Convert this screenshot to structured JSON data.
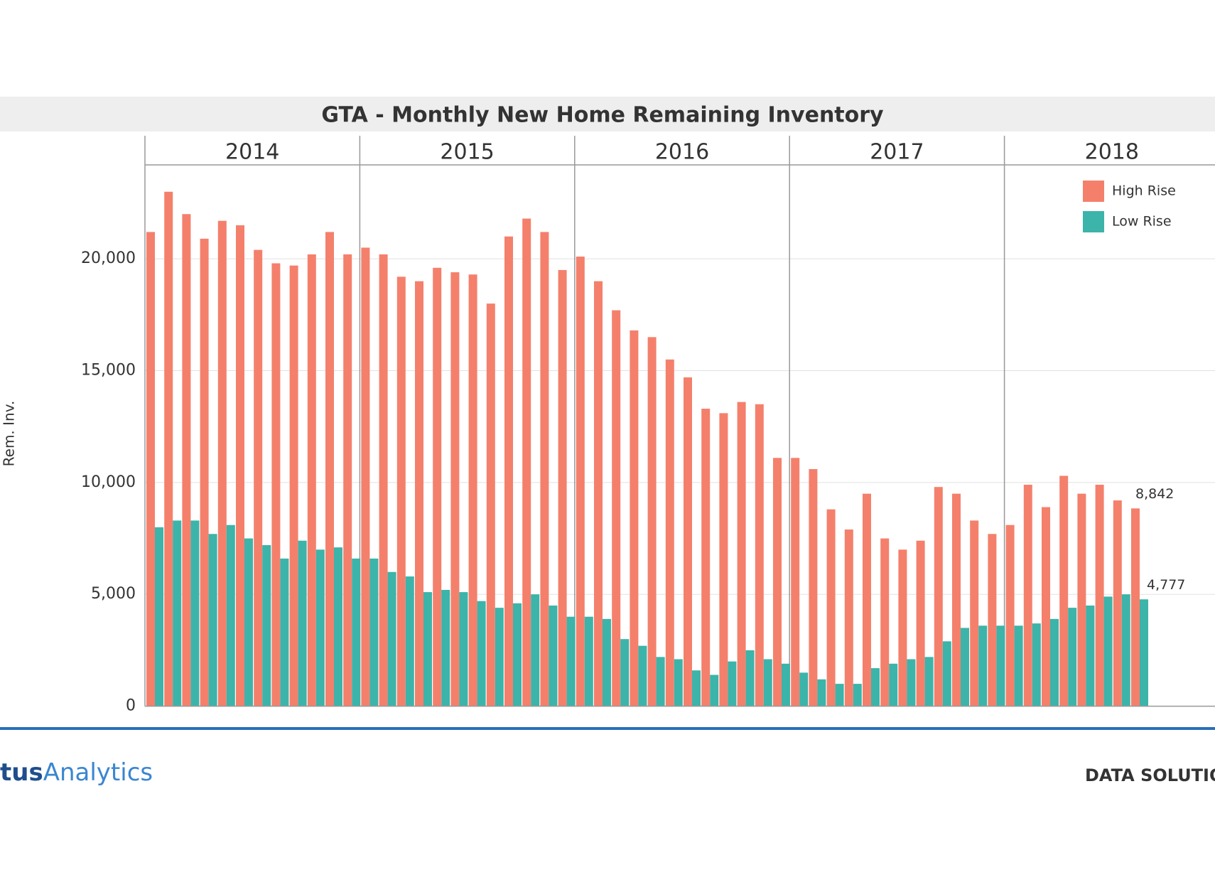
{
  "chart_data": {
    "type": "grouped-bar",
    "title": "GTA - Monthly New Home Remaining Inventory",
    "y_label": "Rem. Inv.",
    "year_labels": [
      "2014",
      "2015",
      "2016",
      "2017",
      "2018"
    ],
    "categories": [
      null,
      null,
      null,
      null,
      null,
      null,
      null,
      null,
      null,
      null,
      null,
      null,
      null,
      null,
      null,
      null,
      null,
      null,
      null,
      null,
      null,
      null,
      null,
      null,
      null,
      null,
      null,
      null,
      null,
      null,
      null,
      null,
      null,
      null,
      null,
      null,
      null,
      null,
      null,
      null,
      null,
      null,
      null,
      null,
      null,
      null,
      null,
      null,
      null,
      null,
      null,
      null,
      null,
      null,
      null,
      null
    ],
    "series": [
      {
        "name": "High Rise",
        "color": "#f4806c",
        "values": [
          21200,
          23000,
          22000,
          20900,
          21700,
          21500,
          20400,
          19800,
          19700,
          20200,
          21200,
          20200,
          20500,
          20200,
          19200,
          19000,
          19600,
          19400,
          19300,
          18000,
          21000,
          21800,
          21200,
          19500,
          20100,
          19000,
          17700,
          16800,
          16500,
          15500,
          14700,
          13300,
          13100,
          13600,
          13500,
          11100,
          11100,
          10600,
          8800,
          7900,
          9500,
          7500,
          7000,
          7400,
          9800,
          9500,
          8300,
          7700,
          8100,
          9900,
          8900,
          10300,
          9500,
          9900,
          9200,
          8842
        ],
        "value_labels": [
          null,
          null,
          null,
          null,
          null,
          null,
          null,
          null,
          null,
          null,
          null,
          null,
          null,
          null,
          null,
          null,
          null,
          null,
          null,
          null,
          null,
          null,
          null,
          null,
          null,
          null,
          null,
          null,
          null,
          null,
          null,
          null,
          null,
          null,
          null,
          null,
          null,
          null,
          null,
          null,
          null,
          null,
          null,
          null,
          null,
          null,
          null,
          null,
          null,
          null,
          null,
          null,
          null,
          null,
          null,
          "8,842"
        ]
      },
      {
        "name": "Low Rise",
        "color": "#3cb4aa",
        "values": [
          8000,
          8300,
          8300,
          7700,
          8100,
          7500,
          7200,
          6600,
          7400,
          7000,
          7100,
          6600,
          6600,
          6000,
          5800,
          5100,
          5200,
          5100,
          4700,
          4400,
          4600,
          5000,
          4500,
          4000,
          4000,
          3900,
          3000,
          2700,
          2200,
          2100,
          1600,
          1400,
          2000,
          2500,
          2100,
          1900,
          1500,
          1200,
          1000,
          1000,
          1700,
          1900,
          2100,
          2200,
          2900,
          3500,
          3600,
          3600,
          3600,
          3700,
          3900,
          4400,
          4500,
          4900,
          5000,
          4777
        ],
        "value_labels": [
          null,
          null,
          null,
          null,
          null,
          null,
          null,
          null,
          null,
          null,
          null,
          null,
          null,
          null,
          null,
          null,
          null,
          null,
          null,
          null,
          null,
          null,
          null,
          null,
          null,
          null,
          null,
          null,
          null,
          null,
          null,
          null,
          null,
          null,
          null,
          null,
          null,
          null,
          null,
          null,
          null,
          null,
          null,
          null,
          null,
          null,
          null,
          null,
          null,
          null,
          null,
          null,
          null,
          null,
          null,
          "4,777"
        ]
      }
    ],
    "ylim": [
      0,
      24200
    ],
    "yticks": [
      0,
      {
        "value": 5000,
        "label": "5,000"
      },
      {
        "value": 10000,
        "label": "10,000"
      },
      {
        "value": 15000,
        "label": "15,000"
      },
      {
        "value": 20000,
        "label": "20,000"
      }
    ],
    "grid": true,
    "legend": "top-right"
  },
  "footer": {
    "brand_bold": "tus",
    "brand": "Analytics",
    "right": "DATA SOLUTIO"
  }
}
